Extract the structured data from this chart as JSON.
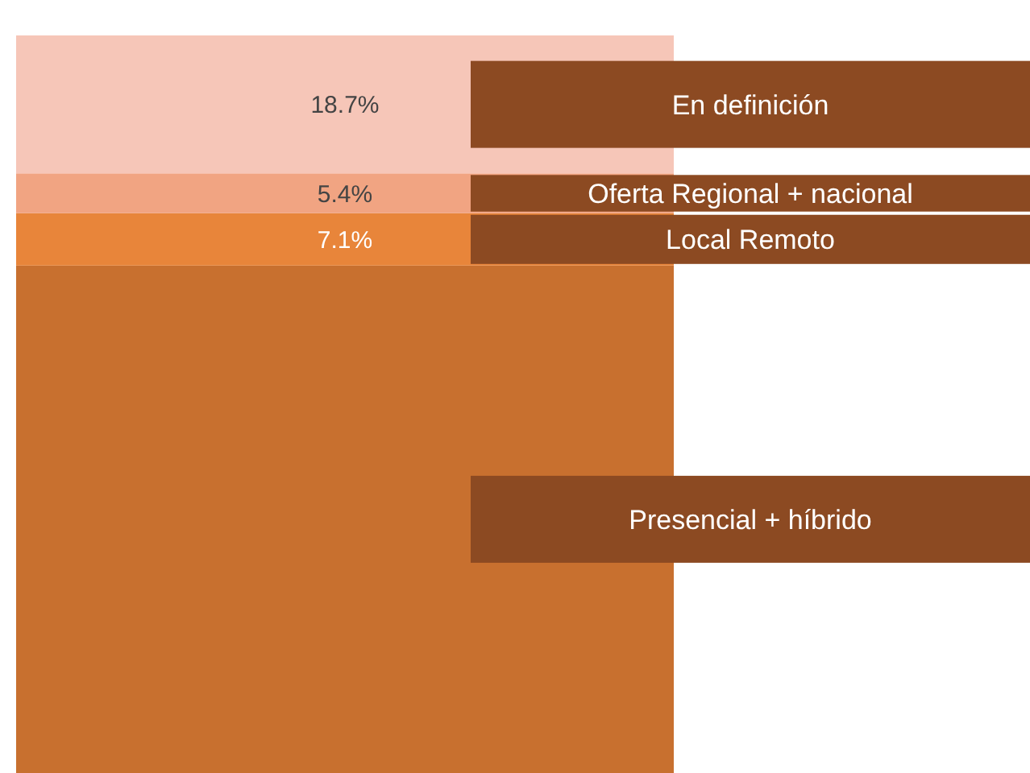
{
  "chart_data": {
    "type": "bar",
    "stacked": true,
    "categories": [
      null
    ],
    "tick_labels": false,
    "series": [
      {
        "name": "Presencial + híbrido",
        "color": "#c8702f",
        "values": [
          68.8
        ],
        "value_labels": [
          null
        ]
      },
      {
        "name": "Local Remoto",
        "color": "#e8853a",
        "values": [
          7.1
        ],
        "value_labels": [
          "7.1%"
        ]
      },
      {
        "name": "Oferta Regional + nacional",
        "color": "#f1a482",
        "values": [
          5.4
        ],
        "value_labels": [
          "5.4%"
        ]
      },
      {
        "name": "En definición",
        "color": "#f6c6b8",
        "values": [
          18.7
        ],
        "value_labels": [
          "18.7%"
        ]
      }
    ]
  }
}
